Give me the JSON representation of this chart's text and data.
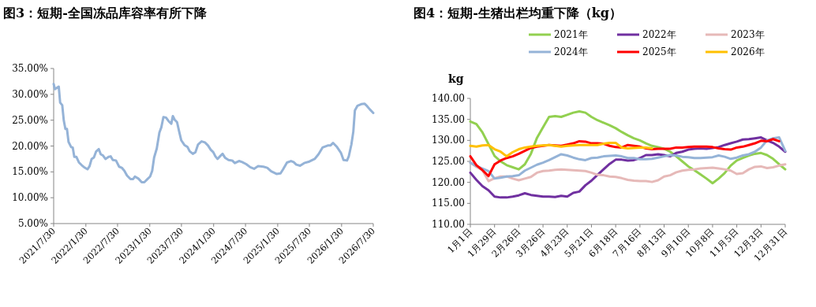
{
  "chart_data": [
    {
      "type": "line",
      "title": "图3：短期-全国冻品库容率有所下降",
      "color": "#95b3d7",
      "x": [
        "2021-07-30",
        "2021-08-06",
        "2021-08-28",
        "2021-09-05",
        "2021-09-17",
        "2021-09-26",
        "2021-10-05",
        "2021-10-14",
        "2021-10-23",
        "2021-11-07",
        "2021-11-16",
        "2021-11-25",
        "2021-12-07",
        "2021-12-22",
        "2022-01-06",
        "2022-01-24",
        "2022-02-08",
        "2022-02-20",
        "2022-03-04",
        "2022-03-17",
        "2022-03-29",
        "2022-04-14",
        "2022-04-25",
        "2022-05-07",
        "2022-05-22",
        "2022-06-09",
        "2022-06-21",
        "2022-07-03",
        "2022-07-21",
        "2022-08-08",
        "2022-08-23",
        "2022-09-07",
        "2022-09-22",
        "2022-10-12",
        "2022-10-27",
        "2022-11-06",
        "2022-11-26",
        "2022-12-15",
        "2022-12-30",
        "2023-01-14",
        "2023-02-01",
        "2023-02-13",
        "2023-02-24",
        "2023-03-11",
        "2023-03-26",
        "2023-04-06",
        "2023-04-18",
        "2023-05-03",
        "2023-05-18",
        "2023-06-02",
        "2023-06-11",
        "2023-06-21",
        "2023-07-05",
        "2023-07-17",
        "2023-07-29",
        "2023-08-16",
        "2023-09-03",
        "2023-09-15",
        "2023-10-03",
        "2023-10-18",
        "2023-11-02",
        "2023-11-22",
        "2023-12-11",
        "2023-12-29",
        "2024-01-13",
        "2024-01-28",
        "2024-02-09",
        "2024-02-21",
        "2024-03-06",
        "2024-03-21",
        "2024-04-05",
        "2024-04-24",
        "2024-05-15",
        "2024-05-30",
        "2024-06-23",
        "2024-07-11",
        "2024-08-03",
        "2024-08-26",
        "2024-09-17",
        "2024-10-10",
        "2024-11-09",
        "2024-12-01",
        "2024-12-24",
        "2025-01-23",
        "2025-02-15",
        "2025-03-02",
        "2025-03-24",
        "2025-04-16",
        "2025-05-01",
        "2025-05-16",
        "2025-06-07",
        "2025-06-30",
        "2025-07-30",
        "2025-08-29",
        "2025-09-20",
        "2025-10-13",
        "2025-11-12",
        "2025-11-27",
        "2025-12-12",
        "2026-01-04",
        "2026-01-26",
        "2026-02-10",
        "2026-03-02",
        "2026-03-12",
        "2026-03-27",
        "2026-04-07",
        "2026-04-16",
        "2026-05-01",
        "2026-05-22",
        "2026-06-10",
        "2026-06-25",
        "2026-07-10",
        "2026-07-30"
      ],
      "values": [
        32.0,
        31.0,
        31.5,
        28.4,
        27.9,
        24.9,
        23.3,
        23.3,
        20.8,
        19.8,
        19.7,
        17.9,
        17.9,
        16.8,
        16.3,
        15.8,
        15.5,
        16.1,
        17.5,
        17.8,
        18.9,
        19.4,
        18.4,
        18.2,
        17.5,
        17.9,
        18.0,
        17.3,
        17.2,
        16.0,
        15.8,
        15.2,
        14.3,
        13.6,
        13.6,
        14.1,
        13.7,
        13.0,
        13.0,
        13.5,
        14.1,
        15.2,
        17.8,
        19.5,
        22.6,
        23.6,
        25.6,
        25.5,
        24.8,
        24.3,
        25.8,
        25.1,
        24.6,
        22.8,
        21.1,
        20.2,
        19.8,
        19.0,
        18.5,
        18.8,
        20.3,
        20.9,
        20.7,
        20.1,
        19.3,
        18.8,
        18.0,
        17.5,
        18.0,
        18.5,
        17.7,
        17.3,
        17.2,
        16.7,
        17.1,
        16.9,
        16.5,
        15.9,
        15.6,
        16.1,
        16.0,
        15.8,
        15.1,
        14.6,
        14.7,
        15.5,
        16.8,
        17.1,
        16.9,
        16.4,
        16.2,
        16.7,
        17.0,
        17.5,
        18.4,
        19.7,
        20.1,
        20.1,
        20.6,
        19.8,
        18.7,
        17.3,
        17.2,
        18.0,
        20.3,
        22.8,
        26.9,
        27.8,
        28.1,
        28.2,
        27.7,
        27.1,
        26.4
      ],
      "xlim": [
        "2021-07-30",
        "2026-07-30"
      ],
      "xticks": [
        {
          "value": "2021-07-30",
          "label": "2021/7/30"
        },
        {
          "value": "2022-01-30",
          "label": "2022/1/30"
        },
        {
          "value": "2022-07-30",
          "label": "2022/7/30"
        },
        {
          "value": "2023-01-30",
          "label": "2023/1/30"
        },
        {
          "value": "2023-07-30",
          "label": "2023/7/30"
        },
        {
          "value": "2024-01-30",
          "label": "2024/1/30"
        },
        {
          "value": "2024-07-30",
          "label": "2024/7/30"
        },
        {
          "value": "2025-01-30",
          "label": "2025/1/30"
        },
        {
          "value": "2025-07-30",
          "label": "2025/7/30"
        },
        {
          "value": "2026-01-30",
          "label": "2026/1/30"
        },
        {
          "value": "2026-07-30",
          "label": "2026/7/30"
        }
      ],
      "ylim": [
        5,
        35
      ],
      "yticks": [
        {
          "value": 5,
          "label": "5.00%"
        },
        {
          "value": 10,
          "label": "10.00%"
        },
        {
          "value": 15,
          "label": "15.00%"
        },
        {
          "value": 20,
          "label": "20.00%"
        },
        {
          "value": 25,
          "label": "25.00%"
        },
        {
          "value": 30,
          "label": "30.00%"
        },
        {
          "value": 35,
          "label": "35.00%"
        }
      ]
    },
    {
      "type": "line",
      "title": "图4：短期-生猪出栏均重下降（kg）",
      "ylabel": "kg",
      "legend": "top",
      "categories": [
        "1月1日",
        null,
        null,
        null,
        "1月29日",
        null,
        null,
        null,
        "2月26日",
        null,
        null,
        null,
        "3月26日",
        null,
        null,
        null,
        "4月23日",
        null,
        null,
        null,
        "5月21日",
        null,
        null,
        null,
        "6月18日",
        null,
        null,
        null,
        "7月16日",
        null,
        null,
        null,
        "8月13日",
        null,
        null,
        null,
        "9月10日",
        null,
        null,
        null,
        "10月8日",
        null,
        null,
        null,
        "11月5日",
        null,
        null,
        null,
        "12月3日",
        null,
        null,
        null,
        "12月31日"
      ],
      "ylim": [
        110,
        140
      ],
      "yticks": [
        {
          "value": 110,
          "label": "110.00"
        },
        {
          "value": 115,
          "label": "115.00"
        },
        {
          "value": 120,
          "label": "120.00"
        },
        {
          "value": 125,
          "label": "125.00"
        },
        {
          "value": 130,
          "label": "130.00"
        },
        {
          "value": 135,
          "label": "135.00"
        },
        {
          "value": 140,
          "label": "140.00"
        }
      ],
      "series": [
        {
          "name": "2021年",
          "color": "#92d050",
          "values": [
            134.5,
            133.9,
            131.9,
            129.1,
            126.3,
            125.0,
            124.1,
            123.6,
            123.1,
            124.3,
            126.8,
            130.6,
            133.1,
            135.6,
            135.8,
            135.6,
            136.1,
            136.6,
            136.9,
            136.6,
            135.6,
            134.8,
            134.2,
            133.6,
            132.9,
            132.0,
            131.2,
            130.5,
            130.0,
            129.3,
            128.7,
            128.4,
            128.0,
            127.3,
            126.2,
            125.0,
            123.8,
            122.9,
            121.9,
            120.9,
            119.8,
            120.9,
            122.2,
            124.0,
            125.2,
            125.8,
            126.4,
            126.8,
            127.0,
            126.5,
            125.6,
            124.3,
            123.1
          ]
        },
        {
          "name": "2022年",
          "color": "#7030a0",
          "values": [
            122.3,
            120.6,
            119.1,
            118.1,
            116.6,
            116.4,
            116.4,
            116.6,
            116.9,
            117.4,
            117.0,
            116.8,
            116.6,
            116.6,
            116.5,
            116.8,
            116.6,
            117.5,
            117.8,
            119.3,
            120.4,
            121.8,
            123.1,
            124.4,
            125.4,
            125.4,
            125.2,
            125.3,
            125.8,
            126.5,
            126.5,
            126.7,
            126.5,
            126.2,
            127.0,
            127.3,
            127.8,
            128.0,
            128.1,
            128.0,
            128.2,
            128.4,
            128.9,
            129.3,
            129.7,
            130.2,
            130.3,
            130.5,
            130.7,
            130.0,
            129.4,
            128.5,
            127.3
          ]
        },
        {
          "name": "2023年",
          "color": "#e6b9b8",
          "values": [
            124.7,
            123.7,
            122.9,
            120.3,
            121.0,
            121.4,
            121.4,
            120.9,
            120.5,
            120.9,
            121.3,
            122.3,
            122.7,
            122.8,
            123.0,
            123.1,
            123.0,
            122.9,
            122.8,
            122.7,
            122.3,
            121.8,
            121.7,
            121.4,
            121.3,
            121.0,
            120.6,
            120.4,
            120.3,
            120.3,
            120.1,
            120.5,
            121.4,
            121.7,
            122.4,
            122.8,
            123.0,
            123.1,
            123.3,
            123.4,
            123.5,
            123.3,
            123.1,
            122.8,
            122.0,
            122.2,
            123.1,
            123.7,
            123.8,
            123.4,
            123.6,
            124.0,
            124.3
          ]
        },
        {
          "name": "2024年",
          "color": "#95b3d7",
          "values": [
            124.7,
            123.9,
            123.3,
            122.7,
            120.9,
            121.1,
            121.4,
            121.5,
            121.7,
            122.8,
            123.5,
            124.2,
            124.7,
            125.3,
            126.0,
            126.7,
            126.4,
            125.9,
            125.5,
            125.3,
            125.8,
            125.9,
            126.2,
            126.3,
            126.4,
            126.2,
            125.8,
            125.8,
            125.5,
            125.5,
            125.6,
            125.9,
            126.2,
            126.5,
            126.4,
            126.1,
            126.0,
            125.8,
            125.8,
            125.9,
            126.0,
            126.4,
            126.1,
            125.6,
            125.9,
            126.4,
            126.7,
            127.3,
            128.3,
            130.0,
            130.5,
            130.7,
            127.5
          ]
        },
        {
          "name": "2025年",
          "color": "#ff0000",
          "values": [
            126.2,
            124.1,
            122.9,
            121.5,
            124.3,
            125.2,
            125.8,
            126.2,
            126.8,
            127.5,
            128.2,
            128.5,
            128.7,
            128.9,
            128.8,
            128.7,
            129.0,
            129.3,
            129.8,
            129.7,
            129.3,
            129.3,
            129.2,
            128.7,
            128.4,
            128.3,
            128.9,
            128.7,
            128.5,
            128.1,
            127.9,
            128.0,
            128.0,
            128.0,
            128.3,
            128.3,
            128.4,
            128.5,
            128.5,
            128.5,
            128.4,
            128.1,
            127.9,
            127.8,
            128.3,
            128.5,
            128.9,
            129.3,
            129.9,
            129.8,
            130.3,
            129.8,
            null
          ]
        },
        {
          "name": "2026年",
          "color": "#ffc000",
          "values": [
            128.7,
            128.5,
            128.8,
            128.9,
            127.9,
            127.3,
            126.2,
            127.2,
            127.9,
            128.3,
            128.5,
            128.7,
            128.8,
            128.9,
            128.7,
            128.5,
            128.7,
            128.8,
            128.9,
            128.9,
            128.9,
            128.9,
            129.2,
            129.4,
            129.4,
            128.3,
            128.1,
            128.2,
            128.3,
            128.3,
            128.1,
            null,
            null,
            null,
            null,
            null,
            null,
            null,
            null,
            null,
            null,
            null,
            null,
            null,
            null,
            null,
            null,
            null,
            null,
            null,
            null,
            null,
            null
          ]
        }
      ]
    }
  ]
}
